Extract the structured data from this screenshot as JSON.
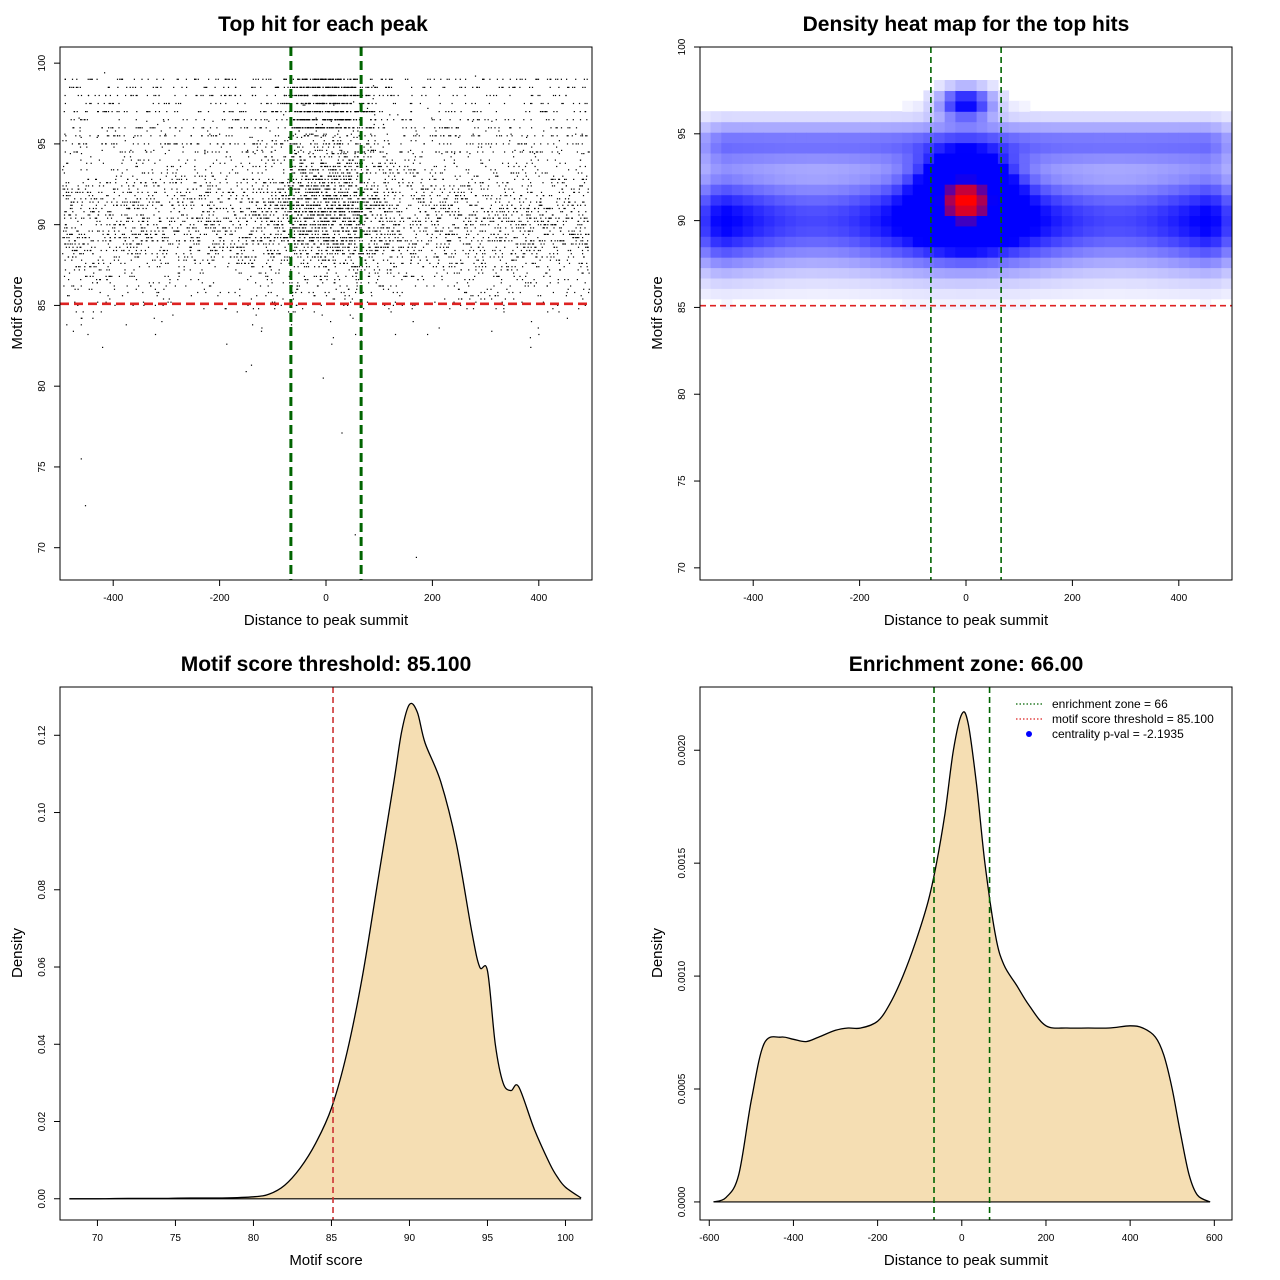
{
  "chart_data": [
    {
      "type": "scatter",
      "title": "Top hit for each peak",
      "xlabel": "Distance to peak summit",
      "ylabel": "Motif score",
      "xlim": [
        -500,
        500
      ],
      "ylim": [
        68,
        101
      ],
      "xticks": [
        -400,
        -200,
        0,
        200,
        400
      ],
      "yticks": [
        70,
        75,
        80,
        85,
        90,
        95,
        100
      ],
      "vlines": [
        -66,
        66
      ],
      "hline": 85.1,
      "colors": {
        "points": "#000000",
        "vlines": "#006400",
        "hline": "#dd2222"
      }
    },
    {
      "type": "heatmap",
      "title": "Density heat map for the top hits",
      "xlabel": "Distance to peak summit",
      "ylabel": "Motif score",
      "xlim": [
        -500,
        500
      ],
      "ylim": [
        69.3,
        100
      ],
      "xticks": [
        -400,
        -200,
        0,
        200,
        400
      ],
      "yticks": [
        70,
        75,
        80,
        85,
        90,
        95,
        100
      ],
      "vlines": [
        -66,
        66
      ],
      "hline": 85.1,
      "peak": {
        "x": 0,
        "y": 91.5
      },
      "colors": {
        "low": "#ffffff",
        "mid": "#0000ff",
        "high": "#ff0000",
        "vlines": "#006400",
        "hline": "#dd2222"
      }
    },
    {
      "type": "area",
      "title": "Motif score threshold: 85.100",
      "xlabel": "Motif score",
      "ylabel": "Density",
      "xlim": [
        67.6,
        101.7
      ],
      "ylim": [
        -0.0055,
        0.1325
      ],
      "xticks": [
        70,
        75,
        80,
        85,
        90,
        95,
        100
      ],
      "yticks": [
        0.0,
        0.02,
        0.04,
        0.06,
        0.08,
        0.1,
        0.12
      ],
      "ytick_labels": [
        "0.00",
        "0.02",
        "0.04",
        "0.06",
        "0.08",
        "0.10",
        "0.12"
      ],
      "vline": 85.1,
      "x": [
        68.2,
        70,
        72,
        74,
        76,
        78,
        80,
        81,
        82,
        83,
        84,
        85,
        86,
        87,
        88,
        89,
        89.5,
        90,
        90.5,
        91,
        92,
        93,
        94,
        94.5,
        95,
        95.5,
        96,
        96.5,
        97,
        98,
        99,
        99.5,
        100,
        101
      ],
      "y": [
        0.0,
        0.0,
        0.0001,
        0.0001,
        0.0002,
        0.0002,
        0.0005,
        0.0012,
        0.0035,
        0.008,
        0.0145,
        0.0235,
        0.038,
        0.058,
        0.083,
        0.108,
        0.121,
        0.128,
        0.126,
        0.118,
        0.108,
        0.092,
        0.069,
        0.06,
        0.059,
        0.04,
        0.03,
        0.028,
        0.029,
        0.018,
        0.009,
        0.0055,
        0.003,
        0.0002
      ],
      "colors": {
        "fill": "#f5deb3",
        "line": "#000000",
        "vline": "#cc3333"
      }
    },
    {
      "type": "area",
      "title": "Enrichment zone: 66.00",
      "xlabel": "Distance to peak summit",
      "ylabel": "Density",
      "xlim": [
        -622,
        642
      ],
      "ylim": [
        -8e-05,
        0.00228
      ],
      "xticks": [
        -600,
        -400,
        -200,
        0,
        200,
        400,
        600
      ],
      "yticks": [
        0.0,
        0.0005,
        0.001,
        0.0015,
        0.002
      ],
      "ytick_labels": [
        "0.0000",
        "0.0005",
        "0.0010",
        "0.0015",
        "0.0020"
      ],
      "vlines": [
        -66,
        66
      ],
      "x": [
        -590,
        -560,
        -530,
        -500,
        -470,
        -430,
        -400,
        -370,
        -340,
        -300,
        -270,
        -240,
        -200,
        -170,
        -140,
        -110,
        -80,
        -60,
        -40,
        -20,
        0,
        15,
        35,
        55,
        80,
        100,
        130,
        160,
        200,
        250,
        300,
        350,
        400,
        430,
        460,
        480,
        500,
        520,
        540,
        560,
        590
      ],
      "y": [
        0.0,
        2e-05,
        0.00012,
        0.00045,
        0.0007,
        0.00073,
        0.00072,
        0.00071,
        0.00073,
        0.00076,
        0.00077,
        0.00077,
        0.0008,
        0.00088,
        0.001,
        0.00115,
        0.00133,
        0.0015,
        0.00172,
        0.002,
        0.00216,
        0.00212,
        0.00185,
        0.0015,
        0.00118,
        0.00105,
        0.00096,
        0.00087,
        0.00078,
        0.00077,
        0.00077,
        0.00077,
        0.00078,
        0.00077,
        0.00073,
        0.00065,
        0.0005,
        0.0003,
        0.00012,
        3e-05,
        0.0
      ],
      "legend": [
        {
          "label": "enrichment zone = 66",
          "marker": "dotted-line",
          "color": "#006400"
        },
        {
          "label": "motif score threshold = 85.100",
          "marker": "dotted-line",
          "color": "#dd2222"
        },
        {
          "label": "centrality p-val = -2.1935",
          "marker": "point",
          "color": "#0000ff"
        }
      ],
      "legend_position": "top-right",
      "colors": {
        "fill": "#f5deb3",
        "line": "#000000",
        "vlines": "#006400"
      }
    }
  ]
}
